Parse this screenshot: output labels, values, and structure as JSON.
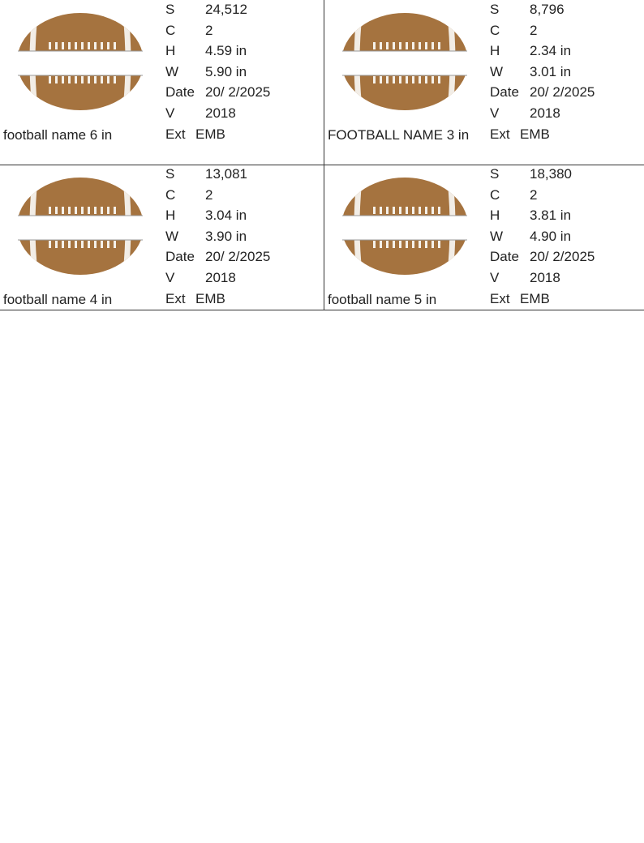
{
  "cells": [
    {
      "name": "football name 6 in",
      "fields": [
        {
          "key": "S",
          "value": "24,512"
        },
        {
          "key": "C",
          "value": "2"
        },
        {
          "key": "H",
          "value": "4.59 in"
        },
        {
          "key": "W",
          "value": "5.90 in"
        },
        {
          "key": "Date",
          "value": "20/ 2/2025"
        },
        {
          "key": "V",
          "value": "2018"
        },
        {
          "key": "Ext",
          "value": "EMB"
        }
      ]
    },
    {
      "name": "FOOTBALL NAME 3 in",
      "fields": [
        {
          "key": "S",
          "value": "8,796"
        },
        {
          "key": "C",
          "value": "2"
        },
        {
          "key": "H",
          "value": "2.34 in"
        },
        {
          "key": "W",
          "value": "3.01 in"
        },
        {
          "key": "Date",
          "value": "20/ 2/2025"
        },
        {
          "key": "V",
          "value": "2018"
        },
        {
          "key": "Ext",
          "value": "EMB"
        }
      ]
    },
    {
      "name": "football name 4 in",
      "fields": [
        {
          "key": "S",
          "value": "13,081"
        },
        {
          "key": "C",
          "value": "2"
        },
        {
          "key": "H",
          "value": "3.04 in"
        },
        {
          "key": "W",
          "value": "3.90 in"
        },
        {
          "key": "Date",
          "value": "20/ 2/2025"
        },
        {
          "key": "V",
          "value": "2018"
        },
        {
          "key": "Ext",
          "value": "EMB"
        }
      ]
    },
    {
      "name": "football name 5 in",
      "fields": [
        {
          "key": "S",
          "value": "18,380"
        },
        {
          "key": "C",
          "value": "2"
        },
        {
          "key": "H",
          "value": "3.81 in"
        },
        {
          "key": "W",
          "value": "4.90 in"
        },
        {
          "key": "Date",
          "value": "20/ 2/2025"
        },
        {
          "key": "V",
          "value": "2018"
        },
        {
          "key": "Ext",
          "value": "EMB"
        }
      ]
    }
  ]
}
